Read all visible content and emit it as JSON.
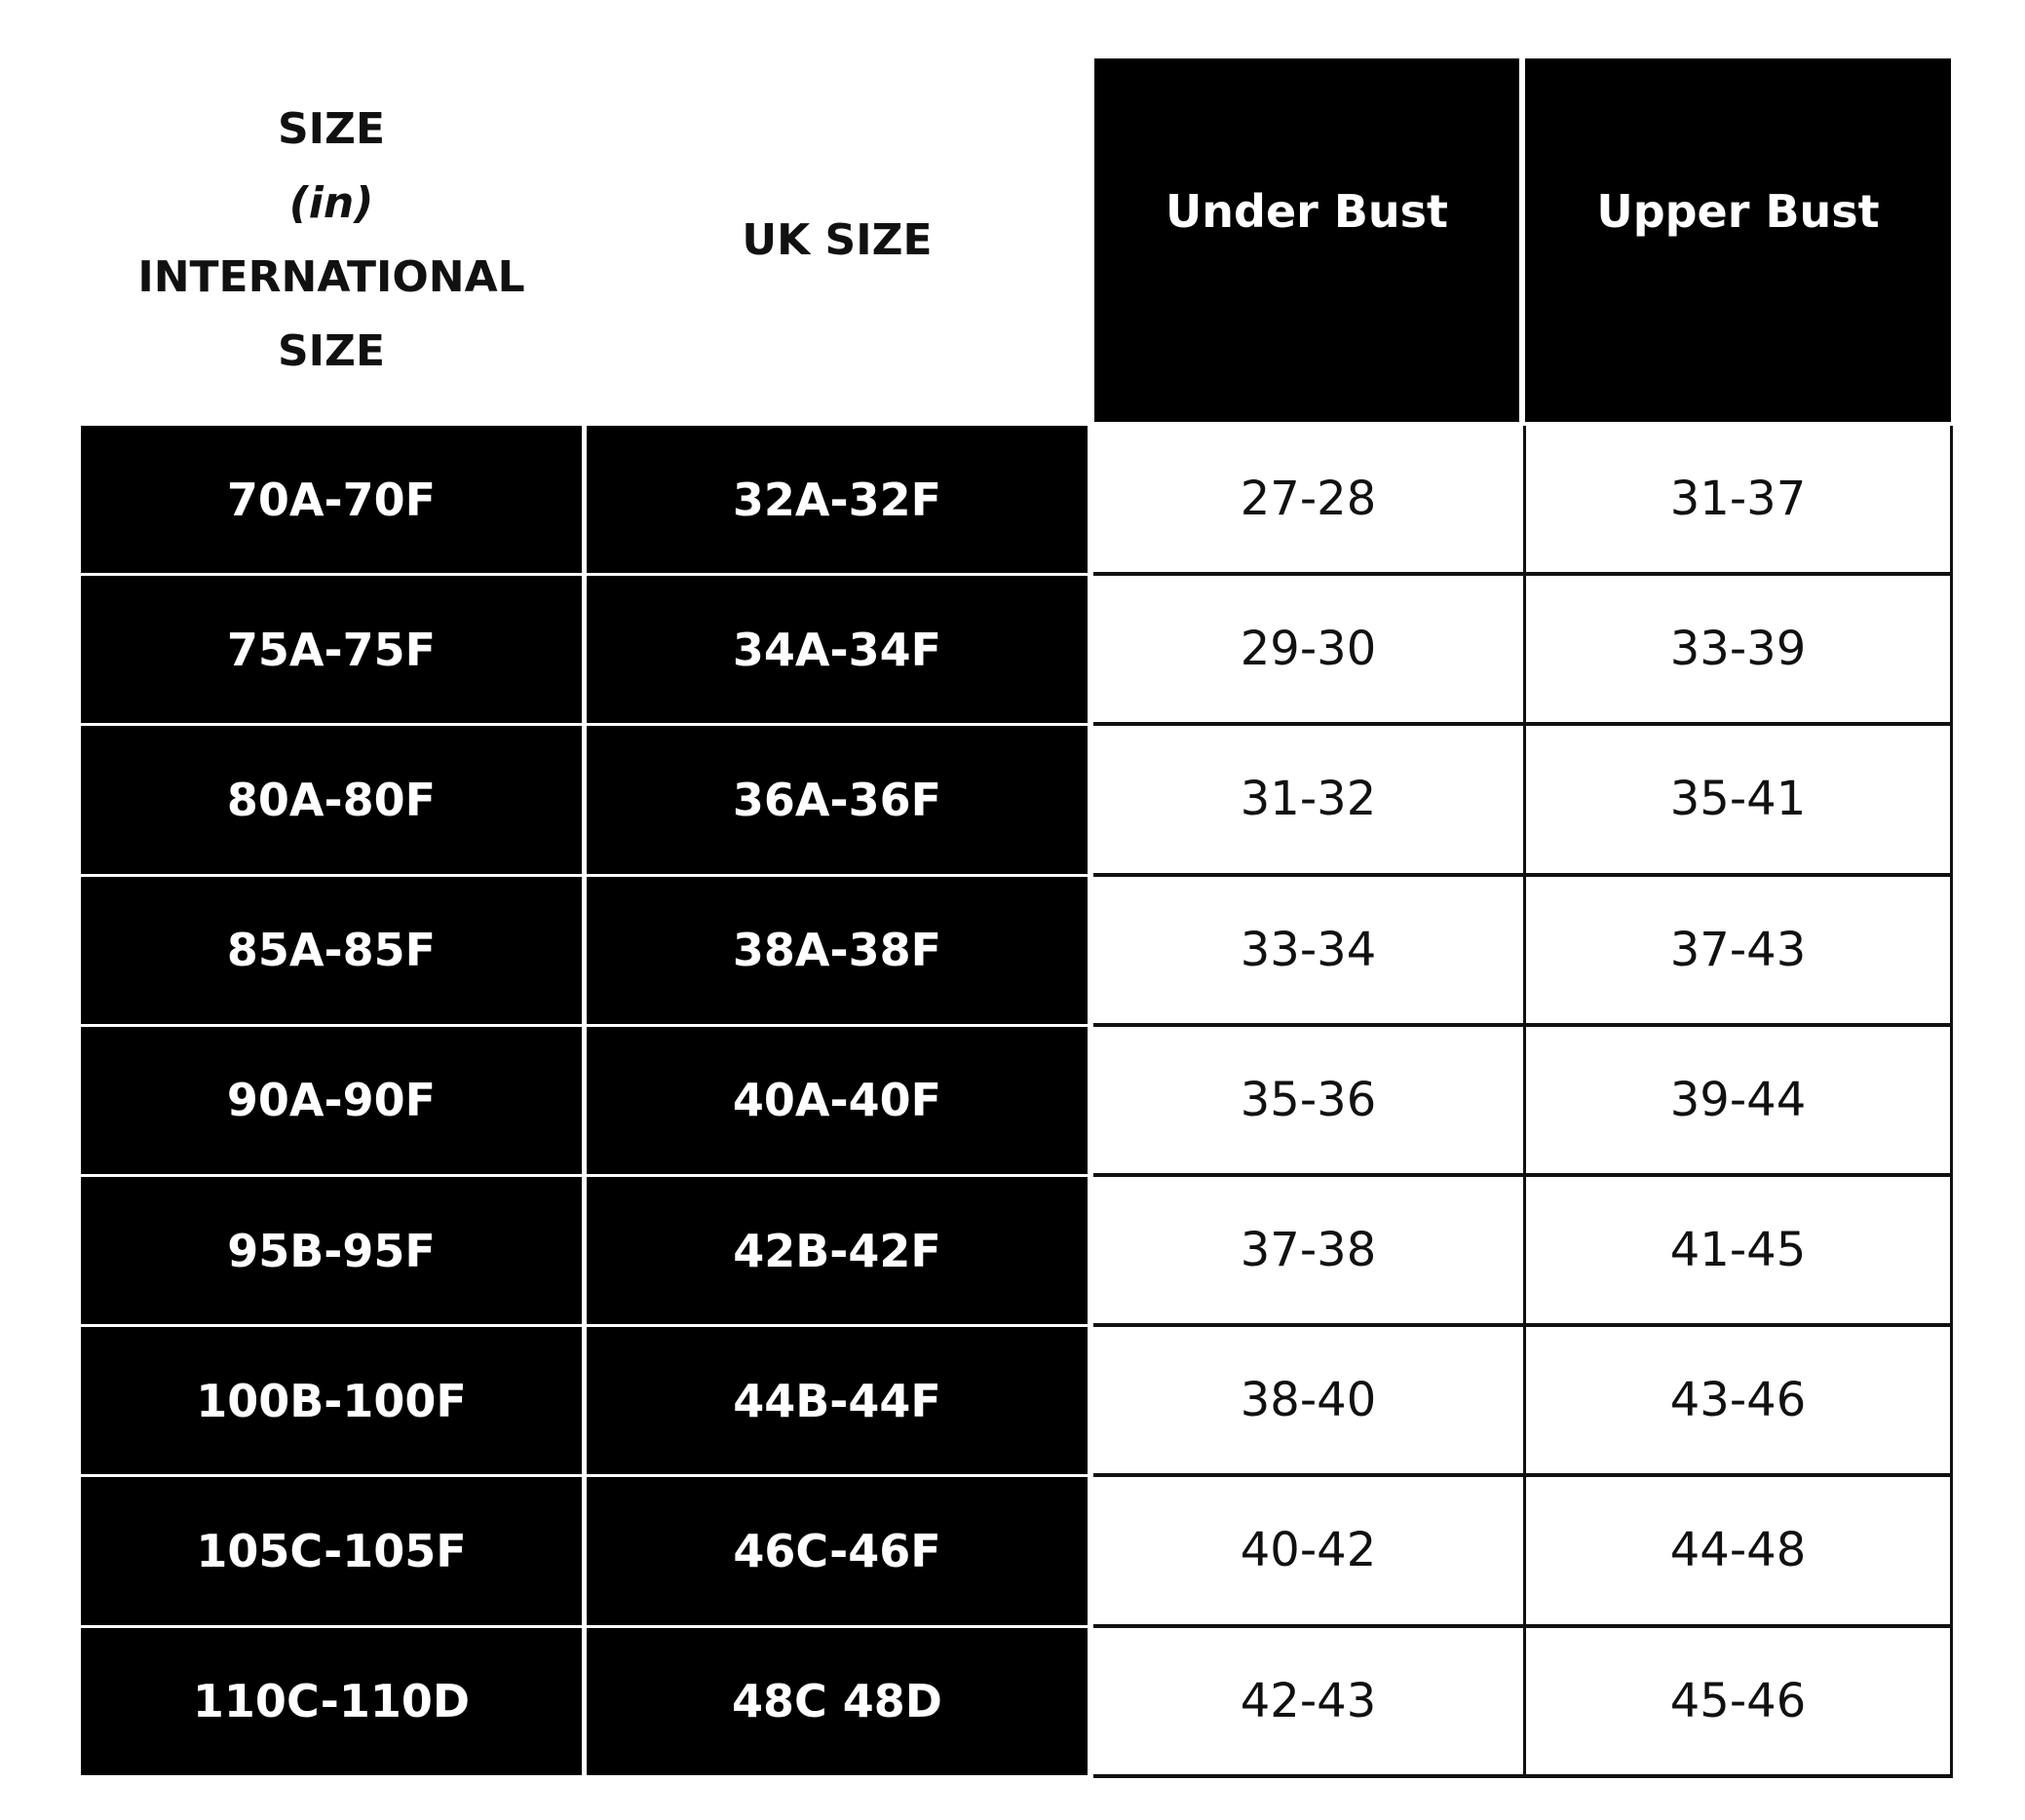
{
  "header": {
    "international_size": [
      "SIZE",
      "(in)",
      "INTERNATIONAL",
      "SIZE"
    ],
    "uk_size": "UK SIZE",
    "under_bust": "Under Bust",
    "upper_bust": "Upper Bust"
  },
  "rows": [
    {
      "international": "70A-70F",
      "uk": "32A-32F",
      "under_bust": "27-28",
      "upper_bust": "31-37"
    },
    {
      "international": "75A-75F",
      "uk": "34A-34F",
      "under_bust": "29-30",
      "upper_bust": "33-39"
    },
    {
      "international": "80A-80F",
      "uk": "36A-36F",
      "under_bust": "31-32",
      "upper_bust": "35-41"
    },
    {
      "international": "85A-85F",
      "uk": "38A-38F",
      "under_bust": "33-34",
      "upper_bust": "37-43"
    },
    {
      "international": "90A-90F",
      "uk": "40A-40F",
      "under_bust": "35-36",
      "upper_bust": "39-44"
    },
    {
      "international": "95B-95F",
      "uk": "42B-42F",
      "under_bust": "37-38",
      "upper_bust": "41-45"
    },
    {
      "international": "100B-100F",
      "uk": "44B-44F",
      "under_bust": "38-40",
      "upper_bust": "43-46"
    },
    {
      "international": "105C-105F",
      "uk": "46C-46F",
      "under_bust": "40-42",
      "upper_bust": "44-48"
    },
    {
      "international": "110C-110D",
      "uk": "48C 48D",
      "under_bust": "42-43",
      "upper_bust": "45-46"
    }
  ]
}
